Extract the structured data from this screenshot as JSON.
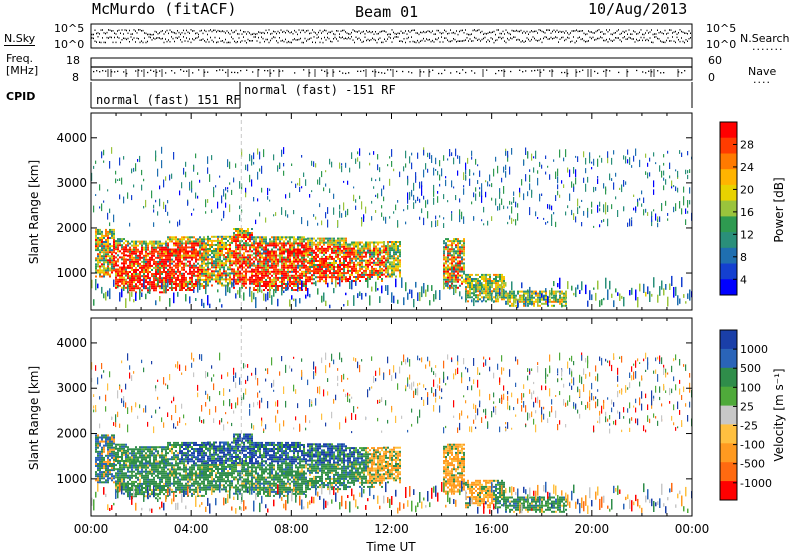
{
  "header": {
    "station": "McMurdo (fitACF)",
    "beam": "Beam 01",
    "date": "10/Aug/2013"
  },
  "strips": {
    "nsky_label": "N.Sky",
    "nsearch_label": "N.Search",
    "nsearch_dots": ".......",
    "freq_label_1": "Freq.",
    "freq_label_2": "[MHz]",
    "nave_label": "Nave",
    "nave_dots": "....",
    "cpid_label": "CPID",
    "noise_left_ticks": [
      "10^5",
      "10^0"
    ],
    "noise_right_ticks": [
      "10^5",
      "10^0"
    ],
    "freq_left_ticks": [
      "18",
      "8"
    ],
    "freq_right_ticks": [
      "60",
      "0"
    ],
    "cpid_segments": [
      "normal (fast) 151 RF",
      "normal (fast) -151 RF"
    ]
  },
  "chart_data": [
    {
      "type": "heatmap",
      "name": "power",
      "xlabel": "",
      "ylabel": "Slant Range [km]",
      "x_ticks": [
        "00:00",
        "04:00",
        "08:00",
        "12:00",
        "16:00",
        "20:00",
        "00:00"
      ],
      "y_ticks": [
        1000,
        2000,
        3000,
        4000
      ],
      "xlim_hours": [
        0,
        24
      ],
      "ylim_km": [
        180,
        4550
      ],
      "colorbar_label": "Power [dB]",
      "colorbar_ticks": [
        "28",
        "24",
        "20",
        "16",
        "12",
        "8",
        "4"
      ],
      "colorbar_colors": [
        "#ff0000",
        "#ff3c00",
        "#ff7a00",
        "#ffb400",
        "#e8d200",
        "#9ac43c",
        "#2e9a50",
        "#2a8f7a",
        "#1f6fb0",
        "#1440d0",
        "#0000ff"
      ]
    },
    {
      "type": "heatmap",
      "name": "velocity",
      "xlabel": "Time UT",
      "ylabel": "Slant Range [km]",
      "x_ticks": [
        "00:00",
        "04:00",
        "08:00",
        "12:00",
        "16:00",
        "20:00",
        "00:00"
      ],
      "y_ticks": [
        1000,
        2000,
        3000,
        4000
      ],
      "xlim_hours": [
        0,
        24
      ],
      "ylim_km": [
        180,
        4550
      ],
      "colorbar_label": "Velocity [m s⁻¹]",
      "colorbar_ticks": [
        "1000",
        "500",
        "100",
        "25",
        "-25",
        "-100",
        "-500",
        "-1000"
      ],
      "colorbar_colors": [
        "#1a3fa8",
        "#2a64b8",
        "#2f8d4a",
        "#4faa3a",
        "#c8c8c8",
        "#ffc040",
        "#ff9a20",
        "#ff6a10",
        "#ff0000"
      ]
    }
  ]
}
